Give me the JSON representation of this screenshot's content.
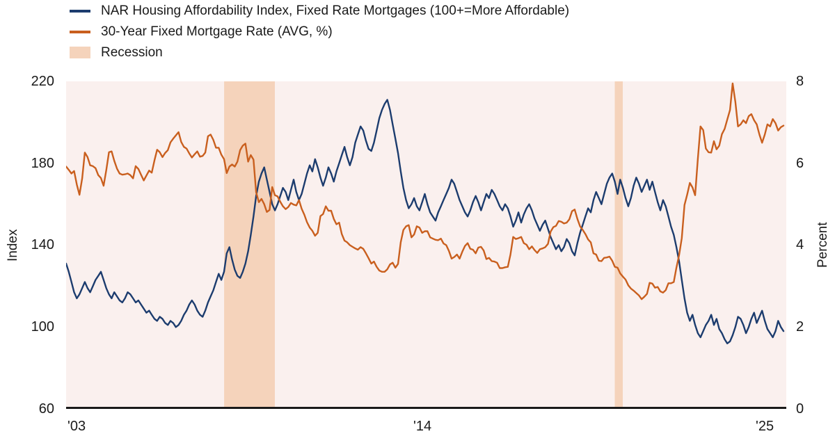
{
  "legend": {
    "series1": "NAR Housing Affordability Index, Fixed Rate Mortgages (100+=More Affordable)",
    "series2": "30-Year Fixed Mortgage Rate (AVG, %)",
    "recession": "Recession"
  },
  "colors": {
    "blue": "#1c3c6e",
    "orange": "#c95f1e",
    "recession": "#f5d3bb",
    "plot_bg": "#faf0ee",
    "axis": "#1a1a1a"
  },
  "axes": {
    "left_title": "Index",
    "right_title": "Percent",
    "left_ticks": [
      "220",
      "180",
      "140",
      "100",
      "60"
    ],
    "right_ticks": [
      "8",
      "6",
      "4",
      "2",
      "0"
    ],
    "x_ticks": [
      "'03",
      "'14",
      "'25"
    ],
    "left_range": [
      60,
      220
    ],
    "right_range": [
      0,
      8
    ],
    "x_range": [
      2003.0,
      2025.42
    ]
  },
  "chart_data": {
    "type": "line",
    "x_start": 2003.0,
    "x_step_months": 1,
    "xlabel": "",
    "left_ylabel": "Index",
    "right_ylabel": "Percent",
    "left_ylim": [
      60,
      220
    ],
    "right_ylim": [
      0,
      8
    ],
    "grid": false,
    "legend_position": "top-left",
    "recessions": [
      {
        "start": 2007.92,
        "end": 2009.5
      },
      {
        "start": 2020.08,
        "end": 2020.33
      }
    ],
    "series": [
      {
        "name": "NAR Housing Affordability Index, Fixed Rate Mortgages (100+=More Affordable)",
        "axis": "left",
        "color_key": "blue",
        "values": [
          131,
          127,
          122,
          117,
          114,
          116,
          119,
          122,
          119,
          117,
          120,
          123,
          125,
          127,
          123,
          119,
          116,
          114,
          117,
          115,
          113,
          112,
          114,
          117,
          116,
          114,
          112,
          113,
          111,
          109,
          107,
          108,
          106,
          104,
          103,
          105,
          104,
          102,
          101,
          103,
          102,
          100,
          101,
          103,
          106,
          108,
          111,
          113,
          111,
          108,
          106,
          105,
          108,
          112,
          115,
          118,
          122,
          126,
          123,
          127,
          136,
          139,
          133,
          128,
          125,
          124,
          127,
          131,
          137,
          145,
          154,
          164,
          171,
          175,
          178,
          172,
          166,
          160,
          157,
          160,
          164,
          168,
          166,
          162,
          167,
          172,
          166,
          162,
          165,
          170,
          175,
          179,
          176,
          182,
          178,
          173,
          169,
          173,
          178,
          175,
          171,
          176,
          180,
          184,
          188,
          183,
          179,
          183,
          190,
          194,
          198,
          196,
          191,
          187,
          186,
          190,
          196,
          202,
          206,
          209,
          211,
          206,
          199,
          192,
          185,
          176,
          168,
          162,
          158,
          160,
          163,
          159,
          157,
          161,
          165,
          160,
          156,
          154,
          152,
          156,
          159,
          162,
          165,
          168,
          172,
          170,
          166,
          162,
          159,
          156,
          154,
          157,
          161,
          164,
          161,
          157,
          161,
          165,
          163,
          167,
          165,
          162,
          159,
          157,
          160,
          158,
          154,
          149,
          152,
          156,
          151,
          155,
          158,
          160,
          157,
          153,
          150,
          147,
          150,
          152,
          148,
          144,
          141,
          138,
          140,
          137,
          139,
          143,
          141,
          137,
          135,
          141,
          146,
          150,
          154,
          158,
          156,
          162,
          166,
          163,
          160,
          165,
          170,
          173,
          175,
          171,
          165,
          172,
          168,
          163,
          159,
          163,
          169,
          173,
          170,
          166,
          169,
          172,
          167,
          171,
          166,
          161,
          157,
          162,
          159,
          154,
          149,
          145,
          139,
          132,
          123,
          114,
          107,
          103,
          106,
          101,
          97,
          95,
          98,
          101,
          103,
          106,
          101,
          104,
          99,
          97,
          94,
          92,
          93,
          96,
          100,
          105,
          104,
          101,
          97,
          100,
          104,
          107,
          102,
          105,
          108,
          103,
          99,
          97,
          95,
          98,
          103,
          100,
          98
        ]
      },
      {
        "name": "30-Year Fixed Mortgage Rate (AVG, %)",
        "axis": "right",
        "color_key": "orange",
        "values": [
          5.92,
          5.84,
          5.75,
          5.81,
          5.48,
          5.23,
          5.63,
          6.26,
          6.15,
          5.95,
          5.93,
          5.88,
          5.71,
          5.64,
          5.45,
          5.83,
          6.27,
          6.29,
          6.06,
          5.87,
          5.75,
          5.72,
          5.73,
          5.75,
          5.71,
          5.63,
          5.93,
          5.86,
          5.72,
          5.58,
          5.7,
          5.82,
          5.77,
          6.07,
          6.33,
          6.27,
          6.15,
          6.25,
          6.32,
          6.51,
          6.6,
          6.68,
          6.76,
          6.52,
          6.4,
          6.36,
          6.24,
          6.14,
          6.22,
          6.29,
          6.16,
          6.18,
          6.26,
          6.66,
          6.7,
          6.57,
          6.38,
          6.38,
          6.21,
          6.1,
          5.76,
          5.92,
          5.97,
          5.92,
          6.04,
          6.32,
          6.43,
          6.48,
          6.04,
          6.2,
          6.09,
          5.29,
          5.05,
          5.13,
          5.0,
          4.81,
          4.86,
          5.42,
          5.22,
          5.19,
          5.06,
          4.95,
          4.88,
          4.93,
          5.03,
          4.99,
          4.97,
          5.1,
          4.89,
          4.74,
          4.56,
          4.43,
          4.35,
          4.23,
          4.3,
          4.71,
          4.76,
          4.95,
          4.84,
          4.84,
          4.64,
          4.51,
          4.55,
          4.27,
          4.11,
          4.07,
          4.0,
          3.96,
          3.92,
          3.89,
          3.95,
          3.91,
          3.8,
          3.68,
          3.55,
          3.6,
          3.47,
          3.38,
          3.35,
          3.35,
          3.41,
          3.53,
          3.57,
          3.45,
          3.54,
          4.07,
          4.37,
          4.46,
          4.49,
          4.19,
          4.26,
          4.46,
          4.43,
          4.3,
          4.34,
          4.34,
          4.19,
          4.16,
          4.13,
          4.12,
          4.16,
          4.04,
          4.0,
          3.86,
          3.67,
          3.71,
          3.77,
          3.67,
          3.84,
          3.98,
          4.05,
          3.91,
          3.89,
          3.8,
          3.94,
          3.96,
          3.87,
          3.66,
          3.69,
          3.61,
          3.6,
          3.57,
          3.44,
          3.44,
          3.46,
          3.47,
          3.77,
          4.2,
          4.15,
          4.17,
          4.2,
          4.05,
          4.01,
          3.9,
          3.97,
          3.88,
          3.81,
          3.9,
          3.92,
          3.95,
          4.03,
          4.33,
          4.44,
          4.47,
          4.59,
          4.57,
          4.53,
          4.55,
          4.63,
          4.83,
          4.87,
          4.64,
          4.46,
          4.37,
          4.27,
          4.14,
          4.07,
          3.8,
          3.77,
          3.62,
          3.61,
          3.69,
          3.7,
          3.72,
          3.62,
          3.47,
          3.45,
          3.31,
          3.23,
          3.16,
          3.02,
          2.94,
          2.89,
          2.83,
          2.77,
          2.68,
          2.74,
          2.81,
          3.08,
          3.06,
          2.96,
          2.98,
          2.87,
          2.84,
          2.9,
          3.07,
          3.07,
          3.1,
          3.45,
          3.76,
          4.17,
          4.98,
          5.23,
          5.52,
          5.41,
          5.22,
          6.11,
          6.9,
          6.81,
          6.36,
          6.27,
          6.26,
          6.54,
          6.34,
          6.43,
          6.71,
          6.84,
          7.07,
          7.3,
          7.95,
          7.5,
          6.9,
          6.95,
          7.05,
          6.98,
          7.15,
          7.2,
          7.05,
          6.95,
          6.7,
          6.5,
          6.7,
          6.95,
          6.9,
          7.08,
          6.98,
          6.8,
          6.88,
          6.92
        ]
      }
    ]
  }
}
